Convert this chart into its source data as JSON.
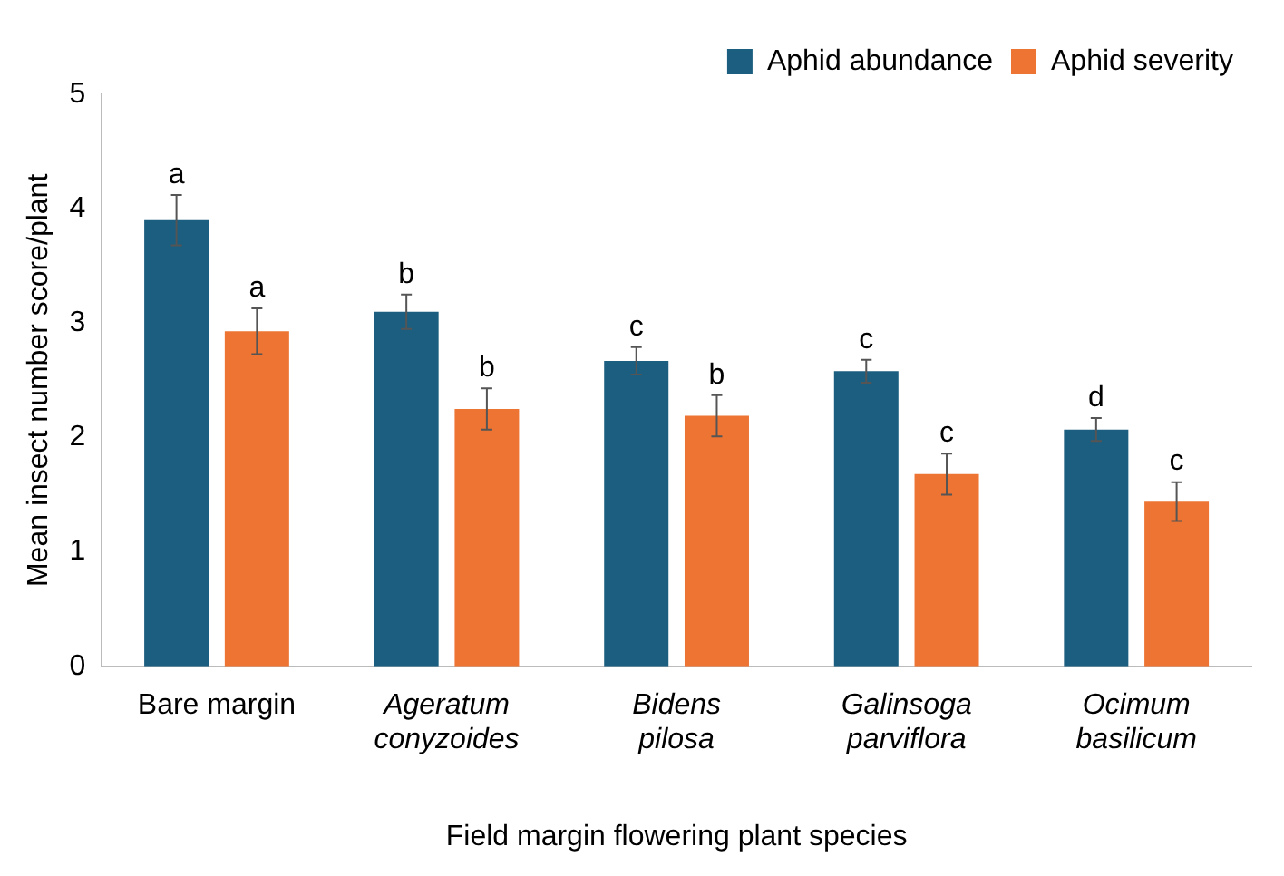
{
  "chart_data": {
    "type": "bar",
    "xlabel": "Field margin flowering plant species",
    "ylabel": "Mean insect number score/plant",
    "categories": [
      "Bare margin",
      "Ageratum conyzoides",
      "Bidens pilosa",
      "Galinsoga parviflora",
      "Ocimum basilicum"
    ],
    "series": [
      {
        "name": "Aphid abundance",
        "color": "#1b5e7f",
        "values": [
          3.9,
          3.1,
          2.67,
          2.58,
          2.07
        ],
        "errors": [
          0.22,
          0.15,
          0.12,
          0.1,
          0.1
        ],
        "value_labels": [
          "a",
          "b",
          "c",
          "c",
          "d"
        ]
      },
      {
        "name": "Aphid severity",
        "color": "#ed7433",
        "values": [
          2.93,
          2.25,
          2.19,
          1.68,
          1.44
        ],
        "errors": [
          0.2,
          0.18,
          0.18,
          0.18,
          0.17
        ],
        "value_labels": [
          "a",
          "b",
          "b",
          "c",
          "c"
        ]
      }
    ],
    "ylim": [
      0,
      5
    ],
    "yticks": [
      0,
      1,
      2,
      3,
      4,
      5
    ],
    "grid": false,
    "legend": "top right"
  }
}
